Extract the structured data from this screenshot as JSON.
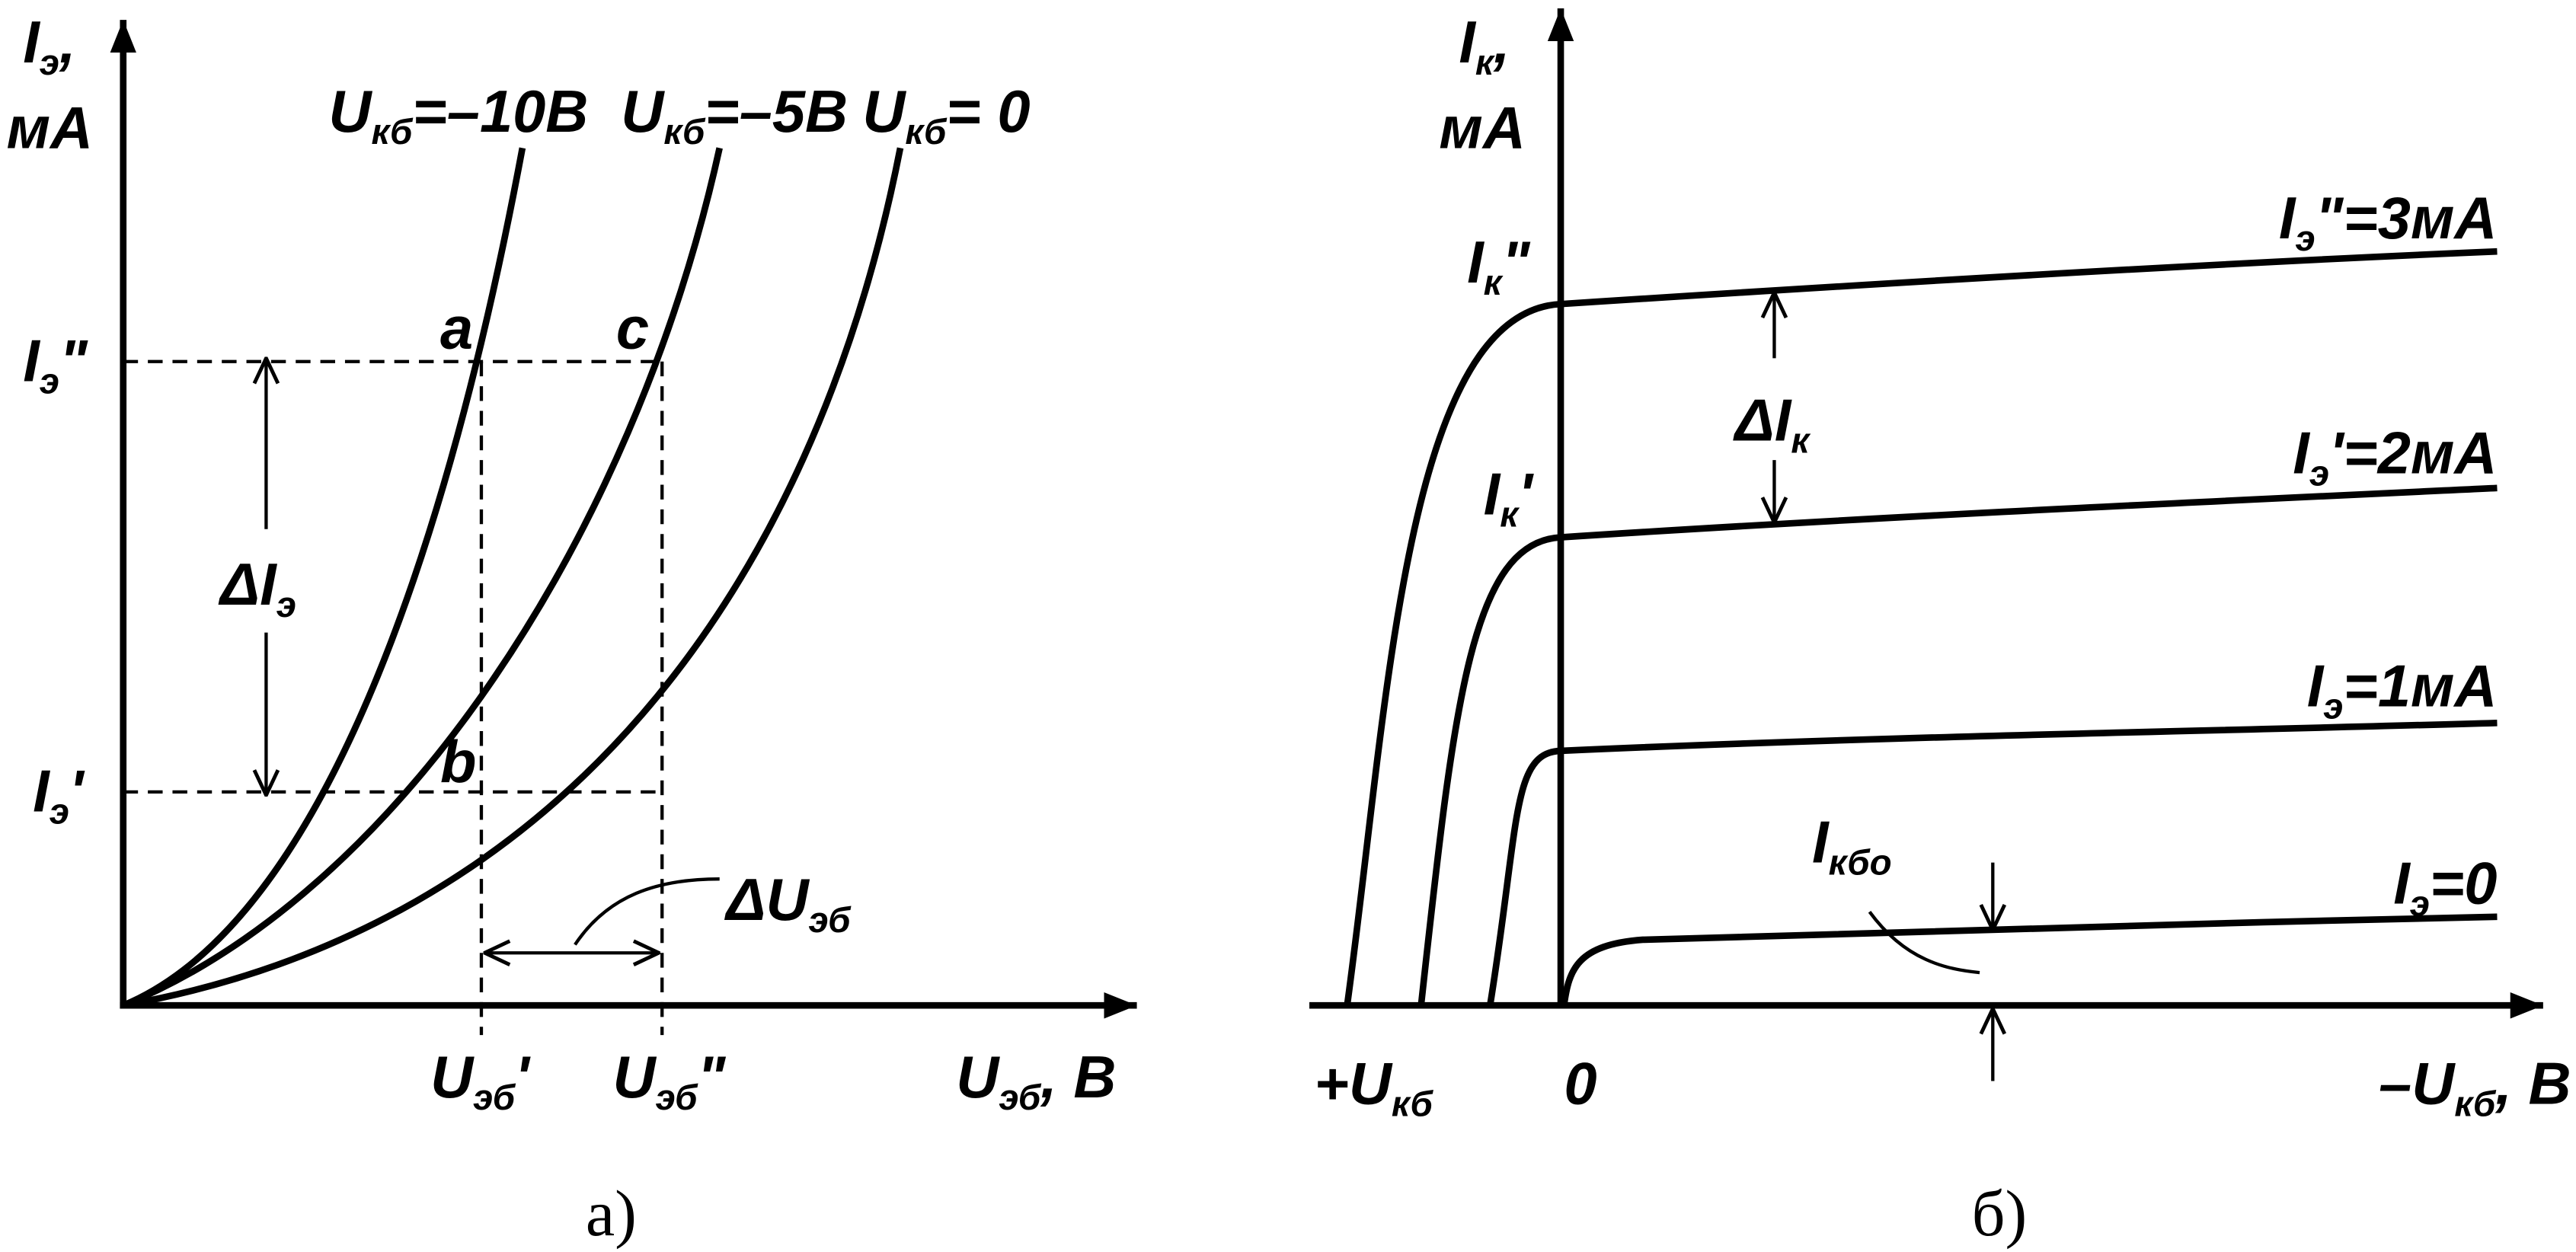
{
  "panel_a": {
    "y_label": {
      "main": "I",
      "sub": "э",
      "tail": ","
    },
    "y_unit": {
      "main": "мА"
    },
    "curves": [
      {
        "main": "U",
        "sub": "кб",
        "tail": "=–10В"
      },
      {
        "main": "U",
        "sub": "кб",
        "tail": "=–5В"
      },
      {
        "main": "U",
        "sub": "кб",
        "tail": "= 0"
      }
    ],
    "i_high": {
      "main": "I",
      "sub": "э",
      "tail": "\""
    },
    "i_low": {
      "main": "I",
      "sub": "э",
      "tail": "'"
    },
    "points": [
      "a",
      "c",
      "b"
    ],
    "delta_i": {
      "main": "ΔI",
      "sub": "э"
    },
    "delta_u": {
      "main": "ΔU",
      "sub": "эб"
    },
    "u_low": {
      "main": "U",
      "sub": "эб",
      "tail": "'"
    },
    "u_high": {
      "main": "U",
      "sub": "эб",
      "tail": "\""
    },
    "x_label": {
      "main": "U",
      "sub": "эб",
      "tail": ", В"
    },
    "caption": "а)"
  },
  "panel_b": {
    "y_label": {
      "main": "I",
      "sub": "к",
      "tail": ","
    },
    "y_unit": {
      "main": "мА"
    },
    "ik_high": {
      "main": "I",
      "sub": "к",
      "tail": "\""
    },
    "ik_low": {
      "main": "I",
      "sub": "к",
      "tail": "'"
    },
    "delta_i": {
      "main": "ΔI",
      "sub": "к"
    },
    "curves": [
      {
        "main": "I",
        "sub": "э",
        "tail": "\"=3мА"
      },
      {
        "main": "I",
        "sub": "э",
        "tail": "'=2мА"
      },
      {
        "main": "I",
        "sub": "э",
        "tail": "=1мА"
      },
      {
        "main": "I",
        "sub": "э",
        "tail": "=0"
      }
    ],
    "i_kbo": {
      "main": "I",
      "sub": "кбо"
    },
    "x_plus": {
      "main": "+U",
      "sub": "кб"
    },
    "x_zero": "0",
    "x_minus": {
      "main": "–U",
      "sub": "кб",
      "tail": ", В"
    },
    "caption": "б)"
  }
}
